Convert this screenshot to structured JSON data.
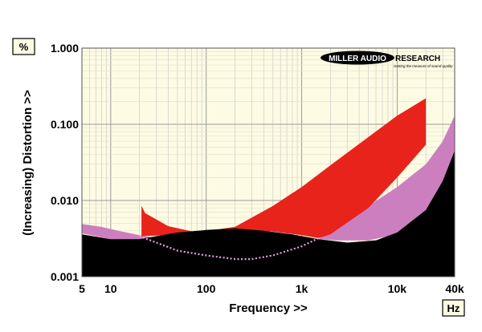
{
  "chart_data": {
    "type": "area",
    "xlabel": "Frequency >>",
    "ylabel": "(Increasing) Distortion >>",
    "y_unit": "%",
    "x_unit": "Hz",
    "xscale": "log",
    "yscale": "log",
    "xlim": [
      5,
      40000
    ],
    "ylim": [
      0.001,
      1.0
    ],
    "x_ticks": [
      {
        "value": 5,
        "label": "5"
      },
      {
        "value": 10,
        "label": "10"
      },
      {
        "value": 100,
        "label": "100"
      },
      {
        "value": 1000,
        "label": "1k"
      },
      {
        "value": 10000,
        "label": "10k"
      },
      {
        "value": 40000,
        "label": "40k"
      }
    ],
    "y_ticks": [
      {
        "value": 0.001,
        "label": "0.001"
      },
      {
        "value": 0.01,
        "label": "0.010"
      },
      {
        "value": 0.1,
        "label": "0.100"
      },
      {
        "value": 1.0,
        "label": "1.000"
      }
    ],
    "grid": true,
    "brand": {
      "name": "MILLER AUDIO RESEARCH",
      "tagline": "Getting the measure of sound quality"
    },
    "colors": {
      "plot_bg": "#fdfbe3",
      "grid": "#cccccc",
      "red_band": "#e8231c",
      "pink_band": "#cc7fbf",
      "black_floor": "#000000",
      "dotted": "#e8a0d8"
    },
    "series": [
      {
        "kind": "band",
        "color_key": "pink_band",
        "upper": {
          "x": [
            5,
            8,
            12,
            20,
            30,
            1500,
            2500,
            5000,
            10000,
            20000,
            30000,
            40000
          ],
          "y": [
            0.0049,
            0.0045,
            0.004,
            0.0035,
            0.0032,
            0.0031,
            0.0048,
            0.0085,
            0.015,
            0.03,
            0.06,
            0.13
          ]
        },
        "lower": {
          "x": [
            5,
            10,
            20,
            30,
            1500,
            2500,
            5000,
            10000,
            20000,
            30000,
            40000
          ],
          "y": [
            0.0037,
            0.0031,
            0.003,
            0.0032,
            0.0031,
            0.003,
            0.003,
            0.0036,
            0.007,
            0.015,
            0.035
          ]
        }
      },
      {
        "kind": "band",
        "color_key": "red_band",
        "upper": {
          "x": [
            21,
            23,
            40,
            80,
            200,
            500,
            1000,
            2000,
            5000,
            10000,
            20000
          ],
          "y": [
            0.0085,
            0.0068,
            0.0046,
            0.0038,
            0.0045,
            0.0085,
            0.015,
            0.029,
            0.068,
            0.13,
            0.22
          ]
        },
        "lower": {
          "x": [
            21,
            40,
            80,
            200,
            500,
            1000,
            1500,
            2000,
            5000,
            10000,
            20000
          ],
          "y": [
            0.0034,
            0.0035,
            0.0038,
            0.0042,
            0.0039,
            0.0035,
            0.0032,
            0.0036,
            0.008,
            0.02,
            0.054
          ]
        }
      },
      {
        "kind": "floor",
        "color_key": "black_floor",
        "x": [
          5,
          10,
          20,
          50,
          100,
          200,
          400,
          800,
          1500,
          3000,
          6000,
          10000,
          20000,
          30000,
          40000
        ],
        "y": [
          0.0036,
          0.0031,
          0.0031,
          0.0038,
          0.0041,
          0.0043,
          0.004,
          0.0036,
          0.0031,
          0.0028,
          0.003,
          0.0038,
          0.0075,
          0.018,
          0.045
        ]
      },
      {
        "kind": "dotted",
        "color_key": "dotted",
        "x": [
          20,
          50,
          100,
          200,
          300,
          500,
          1000,
          1500
        ],
        "y": [
          0.0034,
          0.0022,
          0.0019,
          0.0017,
          0.0017,
          0.0019,
          0.0025,
          0.0032
        ]
      }
    ]
  }
}
